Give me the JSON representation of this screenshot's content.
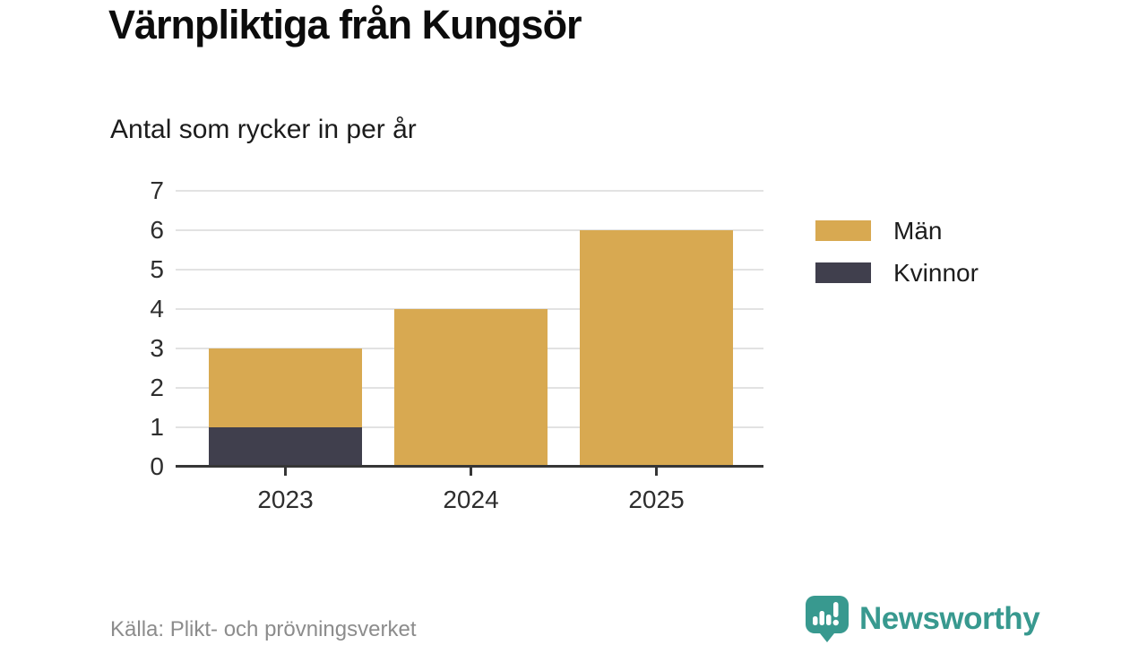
{
  "chart_data": {
    "type": "bar",
    "stacked": true,
    "title": "Värnpliktiga från Kungsör",
    "subtitle": "Antal som rycker in per år",
    "categories": [
      "2023",
      "2024",
      "2025"
    ],
    "series": [
      {
        "name": "Män",
        "color": "#d8a951",
        "values": [
          2,
          4,
          6
        ]
      },
      {
        "name": "Kvinnor",
        "color": "#403f4d",
        "values": [
          1,
          0,
          0
        ]
      }
    ],
    "stack_totals": [
      3,
      4,
      6
    ],
    "xlabel": "",
    "ylabel": "",
    "ylim": [
      0,
      7
    ],
    "yticks": [
      0,
      1,
      2,
      3,
      4,
      5,
      6,
      7
    ],
    "grid": true,
    "legend_position": "right-of-plot"
  },
  "footer": {
    "source": "Källa: Plikt- och prövningsverket",
    "brand": "Newsworthy"
  },
  "icons": {
    "brand_icon": "newsworthy-speech-bubble-bar-chart-icon"
  },
  "colors": {
    "bar_gold": "#d8a951",
    "bar_dark": "#403f4d",
    "brand_teal": "#38998f",
    "gridline": "#e2e2e2",
    "axis": "#363636",
    "tick_text": "#2e2e2e",
    "source_text": "#8c8c8c",
    "background": "#ffffff"
  }
}
